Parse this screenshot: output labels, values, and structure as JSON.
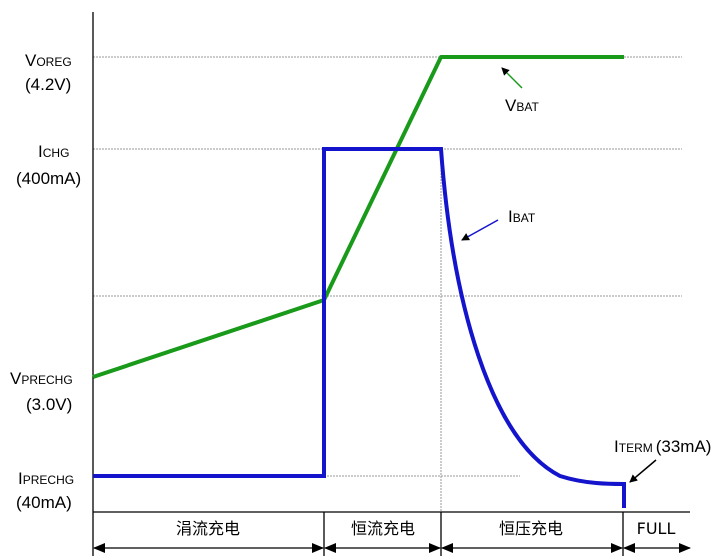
{
  "labels": {
    "voreg": {
      "main": "V",
      "sub": "OREG",
      "value": "(4.2V)"
    },
    "ichg": {
      "main": "I",
      "sub": "CHG",
      "value": "(400mA)"
    },
    "vprechg": {
      "main": "V",
      "sub": "PRECHG",
      "value": "(3.0V)"
    },
    "iprechg": {
      "main": "I",
      "sub": "PRECHG",
      "value": "(40mA)"
    },
    "vbat": {
      "main": "V",
      "sub": "BAT"
    },
    "ibat": {
      "main": "I",
      "sub": "BAT"
    },
    "iterm": {
      "main": "I",
      "sub": "TERM",
      "value": "(33mA)"
    }
  },
  "phases": [
    "涓流充电",
    "恒流充电",
    "恒压充电",
    "FULL"
  ],
  "colors": {
    "voltage": "#1a9a1a",
    "current": "#1414cc",
    "grid": "#9a9a9a",
    "axis": "#000000"
  }
}
